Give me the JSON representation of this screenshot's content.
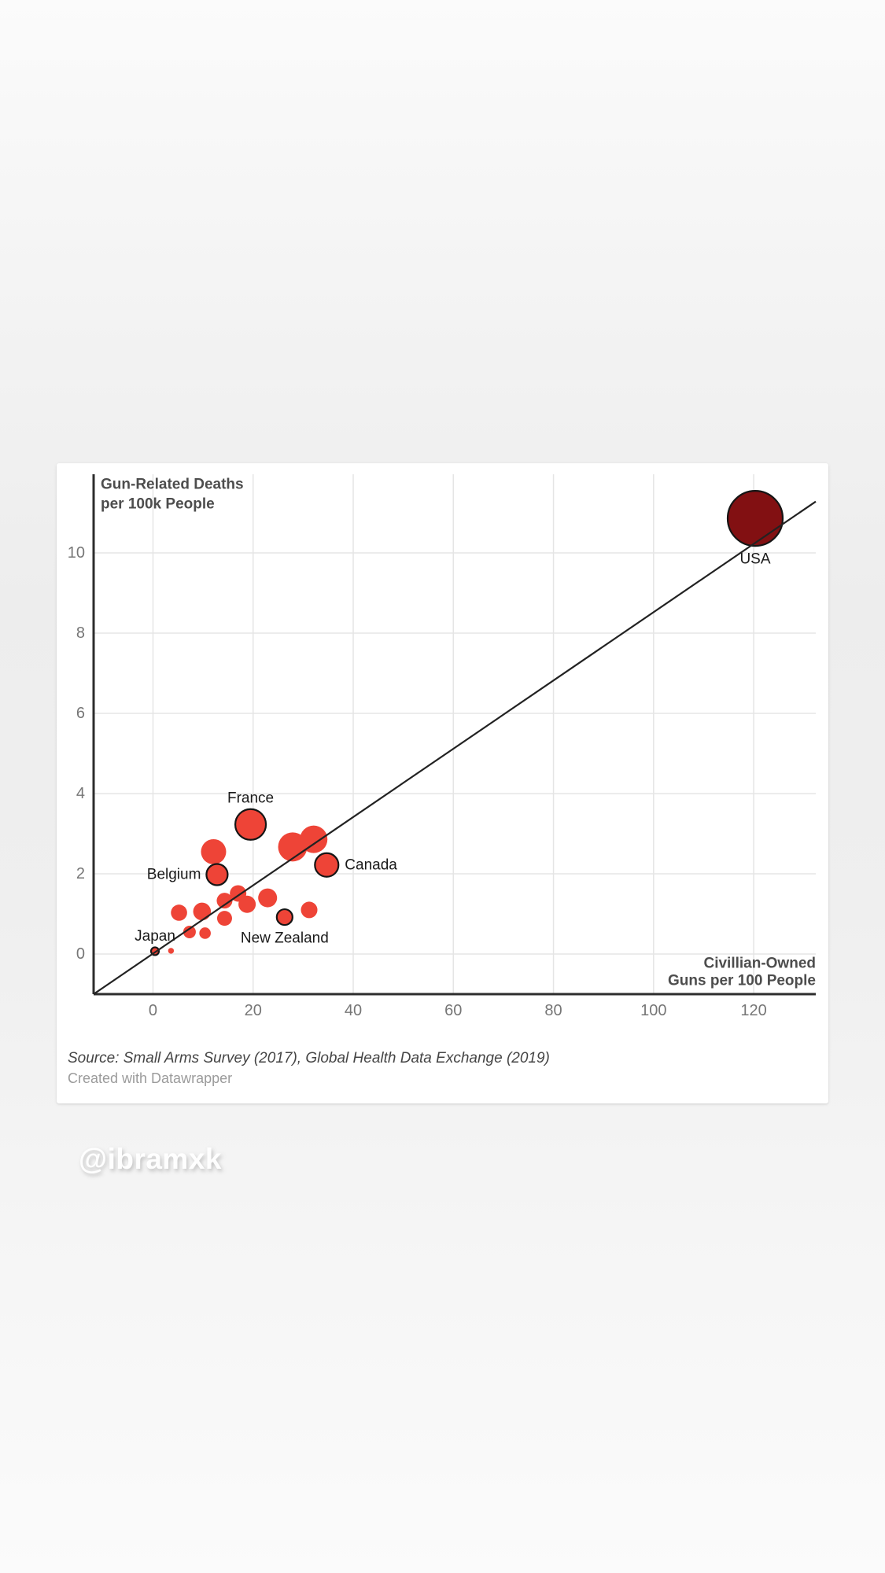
{
  "watermark": "@ibramxk",
  "card": {
    "source_line": "Source: Small Arms Survey (2017), Global Health Data Exchange (2019)",
    "credit_line": "Created with Datawrapper"
  },
  "chart_data": {
    "type": "scatter",
    "y_axis_title_lines": [
      "Gun-Related Deaths",
      "per 100k People"
    ],
    "x_axis_title_lines": [
      "Civillian-Owned",
      "Guns per 100 People"
    ],
    "xlim": [
      -11.86,
      132.4
    ],
    "ylim": [
      -1,
      11.96
    ],
    "x_ticks": [
      0,
      20,
      40,
      60,
      80,
      100,
      120
    ],
    "y_ticks": [
      0,
      2,
      4,
      6,
      8,
      10
    ],
    "grid": true,
    "legend": "none",
    "trend_line": {
      "x1": -11.86,
      "y1": -1.0,
      "x2": 132.4,
      "y2": 11.28
    },
    "colors": {
      "bubble": "#ee4437",
      "usa_bubble": "#821012",
      "outline": "#151515"
    },
    "points": [
      {
        "x": 27.9,
        "y": 2.67,
        "r": 18.5
      },
      {
        "x": 32.1,
        "y": 2.86,
        "r": 17.5
      },
      {
        "x": 12.1,
        "y": 2.55,
        "r": 16
      },
      {
        "x": 5.2,
        "y": 1.03,
        "r": 10.3
      },
      {
        "x": 9.8,
        "y": 1.06,
        "r": 11.3
      },
      {
        "x": 14.3,
        "y": 1.33,
        "r": 10
      },
      {
        "x": 17.0,
        "y": 1.51,
        "r": 10.5
      },
      {
        "x": 18.8,
        "y": 1.24,
        "r": 11
      },
      {
        "x": 22.9,
        "y": 1.4,
        "r": 12
      },
      {
        "x": 14.3,
        "y": 0.89,
        "r": 9.5
      },
      {
        "x": 31.2,
        "y": 1.1,
        "r": 10.5
      },
      {
        "x": 7.3,
        "y": 0.55,
        "r": 8
      },
      {
        "x": 10.4,
        "y": 0.52,
        "r": 7.3
      },
      {
        "x": 3.6,
        "y": 0.08,
        "r": 3.7
      },
      {
        "label": "USA",
        "x": 120.3,
        "y": 10.86,
        "r": 35,
        "special_color": "usa_bubble",
        "outlined": true,
        "label_pos": "below"
      },
      {
        "label": "France",
        "x": 19.5,
        "y": 3.23,
        "r": 19.5,
        "outlined": true,
        "label_pos": "above"
      },
      {
        "label": "Canada",
        "x": 34.7,
        "y": 2.22,
        "r": 15,
        "outlined": true,
        "label_pos": "right"
      },
      {
        "label": "Belgium",
        "x": 12.8,
        "y": 1.98,
        "r": 13.5,
        "outlined": true,
        "label_pos": "left"
      },
      {
        "label": "New Zealand",
        "x": 26.3,
        "y": 0.92,
        "r": 10,
        "outlined": true,
        "label_pos": "below"
      },
      {
        "label": "Japan",
        "x": 0.4,
        "y": 0.07,
        "r": 5,
        "outlined": true,
        "label_pos": "above"
      }
    ]
  }
}
